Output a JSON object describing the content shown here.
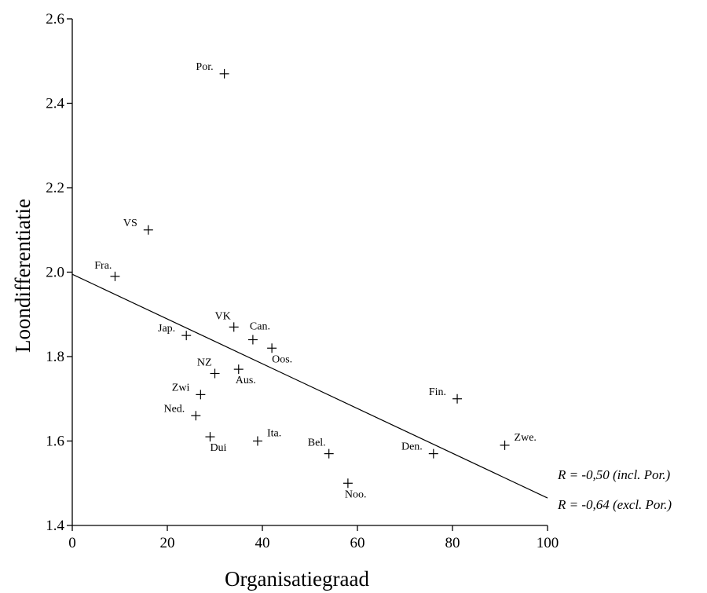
{
  "chart_data": {
    "type": "scatter",
    "title": "",
    "xlabel": "Organisatiegraad",
    "ylabel": "Loondifferentiatie",
    "xlim": [
      0,
      100
    ],
    "ylim": [
      1.4,
      2.6
    ],
    "xticks": [
      0,
      20,
      40,
      60,
      80,
      100
    ],
    "yticks": [
      1.4,
      1.6,
      1.8,
      2.0,
      2.2,
      2.4,
      2.6
    ],
    "ytick_labels": [
      "1.4",
      "1.6",
      "1.8",
      "2.0",
      "2.2",
      "2.4",
      "2.6"
    ],
    "grid": false,
    "points": [
      {
        "label": "Por.",
        "x": 32,
        "y": 2.47,
        "label_pos": "left"
      },
      {
        "label": "VS",
        "x": 16,
        "y": 2.1,
        "label_pos": "left"
      },
      {
        "label": "Fra.",
        "x": 9,
        "y": 1.99,
        "label_pos": "upper-left"
      },
      {
        "label": "VK",
        "x": 34,
        "y": 1.87,
        "label_pos": "upper-left"
      },
      {
        "label": "Can.",
        "x": 38,
        "y": 1.84,
        "label_pos": "above"
      },
      {
        "label": "Oos.",
        "x": 42,
        "y": 1.82,
        "label_pos": "below-right"
      },
      {
        "label": "Jap.",
        "x": 24,
        "y": 1.85,
        "label_pos": "left"
      },
      {
        "label": "NZ",
        "x": 30,
        "y": 1.76,
        "label_pos": "upper-left"
      },
      {
        "label": "Aus.",
        "x": 35,
        "y": 1.77,
        "label_pos": "below"
      },
      {
        "label": "Zwi",
        "x": 27,
        "y": 1.71,
        "label_pos": "left"
      },
      {
        "label": "Ned.",
        "x": 26,
        "y": 1.66,
        "label_pos": "left"
      },
      {
        "label": "Dui",
        "x": 29,
        "y": 1.61,
        "label_pos": "below-right"
      },
      {
        "label": "Ita.",
        "x": 39,
        "y": 1.6,
        "label_pos": "upper-right"
      },
      {
        "label": "Bel.",
        "x": 54,
        "y": 1.57,
        "label_pos": "upper-left"
      },
      {
        "label": "Noo.",
        "x": 58,
        "y": 1.5,
        "label_pos": "below"
      },
      {
        "label": "Fin.",
        "x": 81,
        "y": 1.7,
        "label_pos": "left"
      },
      {
        "label": "Den.",
        "x": 76,
        "y": 1.57,
        "label_pos": "left"
      },
      {
        "label": "Zwe.",
        "x": 91,
        "y": 1.59,
        "label_pos": "upper-right"
      }
    ],
    "regression_line": {
      "x": [
        0,
        100
      ],
      "y": [
        1.995,
        1.465
      ]
    },
    "annotations": [
      "R = -0,50 (incl. Por.)",
      "R = -0,64 (excl. Por.)"
    ]
  }
}
